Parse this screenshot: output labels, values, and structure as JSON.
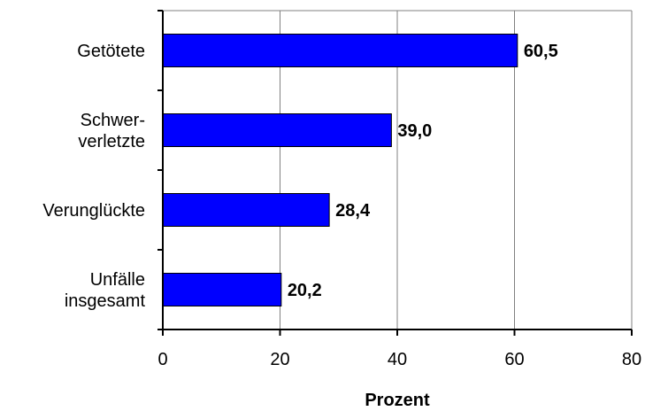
{
  "chart_data": {
    "type": "bar",
    "orientation": "horizontal",
    "categories": [
      [
        "Getötete"
      ],
      [
        "Schwer-",
        "verletzte"
      ],
      [
        "Verunglückte"
      ],
      [
        "Unfälle",
        "insgesamt"
      ]
    ],
    "values": [
      60.5,
      39.0,
      28.4,
      20.2
    ],
    "value_labels": [
      "60,5",
      "39,0",
      "28,4",
      "20,2"
    ],
    "xlabel": "Prozent",
    "xlim": [
      0,
      80
    ],
    "xticks": [
      0,
      20,
      40,
      60,
      80
    ],
    "xtick_labels": [
      "0",
      "20",
      "40",
      "60",
      "80"
    ],
    "grid": "vertical",
    "legend": "none",
    "bar_color": "#0000ff",
    "bar_edge_color": "#000000",
    "grid_color": "#808080"
  }
}
